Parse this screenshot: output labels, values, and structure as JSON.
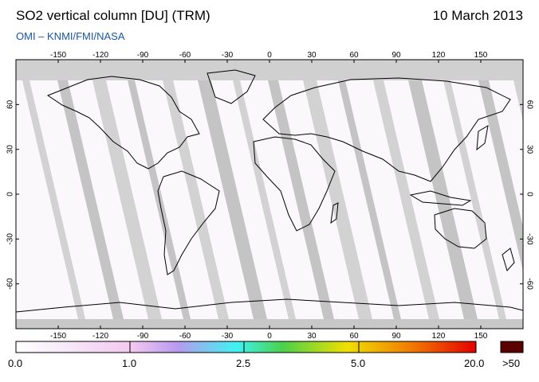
{
  "header": {
    "title": "SO2 vertical column [DU] (TRM)",
    "date": "10 March 2013",
    "subtitle": "OMI  –  KNMI/FMI/NASA"
  },
  "map": {
    "lon_ticks": [
      -150,
      -120,
      -90,
      -60,
      -30,
      0,
      30,
      60,
      90,
      120,
      150
    ],
    "lon_labels": [
      "-150",
      "-120",
      "-90",
      "-60",
      "-30",
      "0",
      "30",
      "60",
      "90",
      "120",
      "150"
    ],
    "lat_ticks": [
      60,
      30,
      0,
      -30,
      -60
    ],
    "lat_labels": [
      "60",
      "30",
      "0",
      "-30",
      "-60"
    ],
    "lon_range": [
      -180,
      180
    ],
    "lat_range": [
      -90,
      90
    ]
  },
  "colorbar": {
    "labels": [
      "0.0",
      "1.0",
      "2.5",
      "5.0",
      "20.0"
    ],
    "over_label": ">50",
    "colors": {
      "start": "#ffffff",
      "pink": "#f4c8f0",
      "violet": "#b89af0",
      "cyan": "#3ff2f2",
      "green": "#4ad24a",
      "yellow": "#f0e000",
      "orange": "#f07a00",
      "red": "#e40000",
      "over": "#5a0000"
    }
  }
}
